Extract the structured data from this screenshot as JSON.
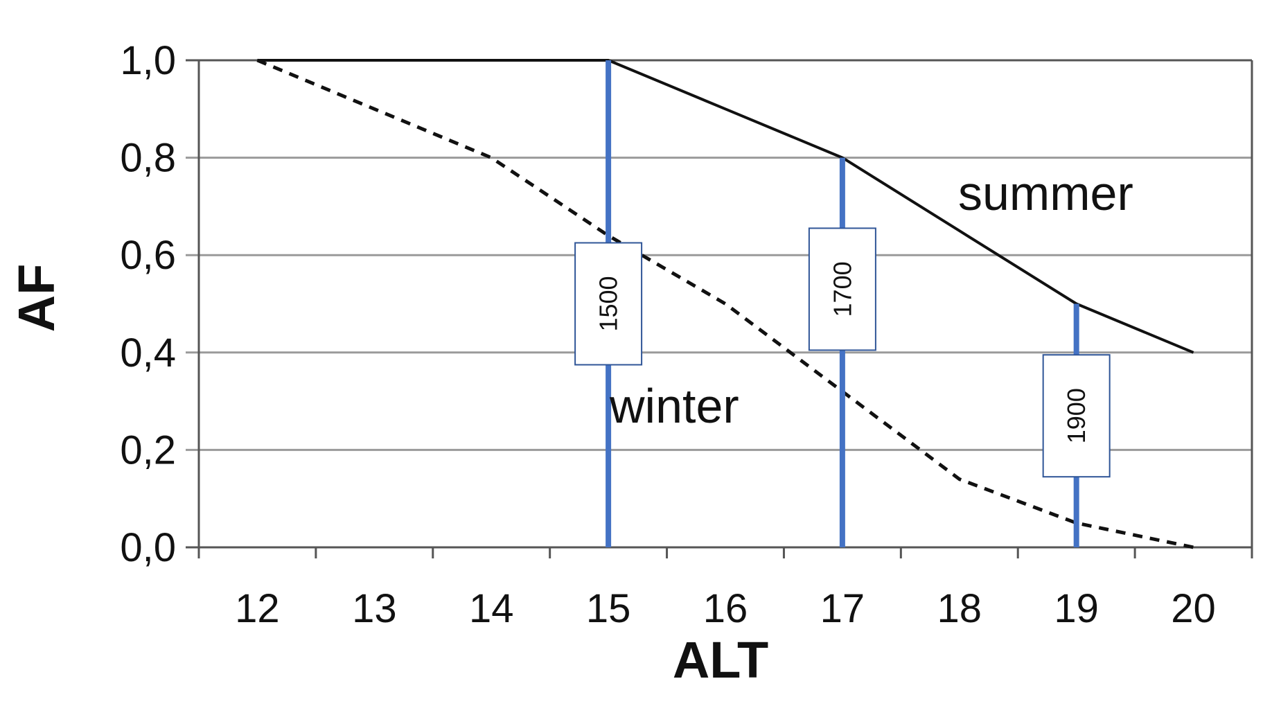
{
  "chart_data": {
    "type": "line",
    "xlabel": "ALT",
    "ylabel": "AF",
    "xlim": [
      11.5,
      20.5
    ],
    "ylim": [
      0,
      1
    ],
    "x_ticks": [
      "12",
      "13",
      "14",
      "15",
      "16",
      "17",
      "18",
      "19",
      "20"
    ],
    "y_ticks": [
      "1,0",
      "0,8",
      "0,6",
      "0,4",
      "0,2",
      "0,0"
    ],
    "grid": "horizontal",
    "series": [
      {
        "name": "summer",
        "style": "solid",
        "color": "#111111",
        "x": [
          12,
          13,
          14,
          15,
          16,
          17,
          18,
          19,
          20
        ],
        "y": [
          1.0,
          1.0,
          1.0,
          1.0,
          0.9,
          0.8,
          0.65,
          0.5,
          0.4
        ]
      },
      {
        "name": "winter",
        "style": "dashed",
        "color": "#111111",
        "x": [
          12,
          13,
          14,
          15,
          16,
          17,
          18,
          19,
          20
        ],
        "y": [
          1.0,
          0.9,
          0.8,
          0.64,
          0.5,
          0.32,
          0.14,
          0.05,
          0.0
        ]
      }
    ],
    "markers": [
      {
        "x": 15,
        "y_top": 1.0,
        "label": "1500",
        "color": "#4472C4"
      },
      {
        "x": 17,
        "y_top": 0.8,
        "label": "1700",
        "color": "#4472C4"
      },
      {
        "x": 19,
        "y_top": 0.5,
        "label": "1900",
        "color": "#4472C4"
      }
    ]
  }
}
